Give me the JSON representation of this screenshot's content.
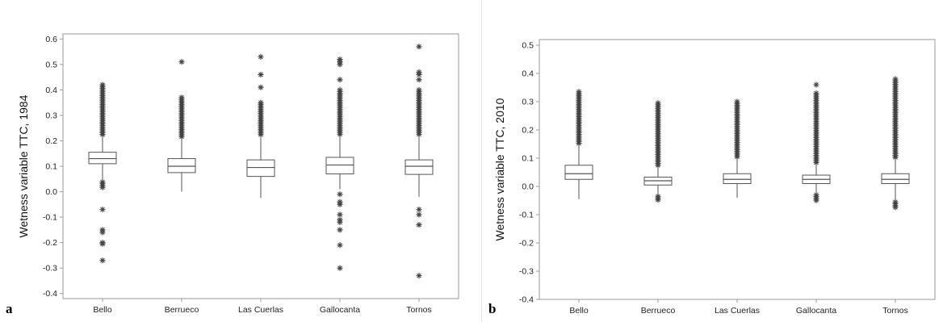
{
  "chart_data": [
    {
      "panel": "a",
      "type": "box",
      "ylabel": "Wetness variable TTC, 1984",
      "ylim": [
        -0.42,
        0.62
      ],
      "yticks": [
        -0.4,
        -0.3,
        -0.2,
        -0.1,
        0.0,
        0.1,
        0.2,
        0.3,
        0.4,
        0.5,
        0.6
      ],
      "ytick_labels": [
        "-0.4",
        "-0.3",
        "-0.2",
        "-0.1",
        "0.0",
        "0.1",
        "0.2",
        "0.3",
        "0.4",
        "0.5",
        "0.6"
      ],
      "categories": [
        "Bello",
        "Berrueco",
        "Las Cuerlas",
        "Gallocanta",
        "Tornos"
      ],
      "boxes": [
        {
          "q1": 0.11,
          "median": 0.13,
          "q3": 0.155,
          "whisker_low": 0.04,
          "whisker_high": 0.22,
          "upper_dense": [
            0.22,
            0.42
          ],
          "lower_dense": [
            0.015,
            0.038
          ],
          "outliers": [
            -0.07,
            -0.15,
            -0.16,
            -0.2,
            -0.205,
            -0.27
          ]
        },
        {
          "q1": 0.075,
          "median": 0.1,
          "q3": 0.13,
          "whisker_low": 0.0,
          "whisker_high": 0.21,
          "upper_dense": [
            0.21,
            0.37
          ],
          "lower_dense": null,
          "outliers": [
            0.51
          ]
        },
        {
          "q1": 0.06,
          "median": 0.095,
          "q3": 0.125,
          "whisker_low": -0.025,
          "whisker_high": 0.22,
          "upper_dense": [
            0.22,
            0.35
          ],
          "lower_dense": null,
          "outliers": [
            0.41,
            0.46,
            0.53
          ]
        },
        {
          "q1": 0.07,
          "median": 0.105,
          "q3": 0.135,
          "whisker_low": 0.01,
          "whisker_high": 0.22,
          "upper_dense": [
            0.22,
            0.4
          ],
          "lower_dense": null,
          "outliers": [
            -0.01,
            -0.04,
            -0.05,
            -0.09,
            -0.11,
            -0.12,
            -0.15,
            -0.21,
            -0.3,
            0.44,
            0.5,
            0.51,
            0.52
          ]
        },
        {
          "q1": 0.068,
          "median": 0.1,
          "q3": 0.125,
          "whisker_low": -0.02,
          "whisker_high": 0.22,
          "upper_dense": [
            0.22,
            0.4
          ],
          "lower_dense": null,
          "outliers": [
            -0.07,
            -0.09,
            -0.13,
            -0.33,
            0.44,
            0.46,
            0.47,
            0.57
          ]
        }
      ]
    },
    {
      "panel": "b",
      "type": "box",
      "ylabel": "Wetness variable TTC, 2010",
      "ylim": [
        -0.4,
        0.52
      ],
      "yticks": [
        -0.4,
        -0.3,
        -0.2,
        -0.1,
        0.0,
        0.1,
        0.2,
        0.3,
        0.4,
        0.5
      ],
      "ytick_labels": [
        "-0.4",
        "-0.3",
        "-0.2",
        "-0.1",
        "0.0",
        "0.1",
        "0.2",
        "0.3",
        "0.4",
        "0.5"
      ],
      "categories": [
        "Bello",
        "Berrueco",
        "Las Cuerlas",
        "Gallocanta",
        "Tornos"
      ],
      "boxes": [
        {
          "q1": 0.025,
          "median": 0.045,
          "q3": 0.075,
          "whisker_low": -0.045,
          "whisker_high": 0.15,
          "upper_dense": [
            0.15,
            0.335
          ],
          "lower_dense": null,
          "outliers": []
        },
        {
          "q1": 0.005,
          "median": 0.02,
          "q3": 0.033,
          "whisker_low": -0.035,
          "whisker_high": 0.07,
          "upper_dense": [
            0.07,
            0.295
          ],
          "lower_dense": [
            -0.05,
            -0.035
          ],
          "outliers": []
        },
        {
          "q1": 0.01,
          "median": 0.025,
          "q3": 0.045,
          "whisker_low": -0.04,
          "whisker_high": 0.1,
          "upper_dense": [
            0.1,
            0.3
          ],
          "lower_dense": null,
          "outliers": []
        },
        {
          "q1": 0.01,
          "median": 0.025,
          "q3": 0.04,
          "whisker_low": -0.03,
          "whisker_high": 0.08,
          "upper_dense": [
            0.08,
            0.33
          ],
          "lower_dense": [
            -0.055,
            -0.03
          ],
          "outliers": [
            0.36
          ]
        },
        {
          "q1": 0.01,
          "median": 0.025,
          "q3": 0.045,
          "whisker_low": -0.055,
          "whisker_high": 0.1,
          "upper_dense": [
            0.1,
            0.38
          ],
          "lower_dense": [
            -0.075,
            -0.055
          ],
          "outliers": []
        }
      ]
    }
  ],
  "panels": {
    "a": {
      "label": "a"
    },
    "b": {
      "label": "b"
    }
  },
  "colors": {
    "box_stroke": "#555555",
    "outlier": "#444444",
    "frame": "#999999",
    "text": "#222222"
  }
}
